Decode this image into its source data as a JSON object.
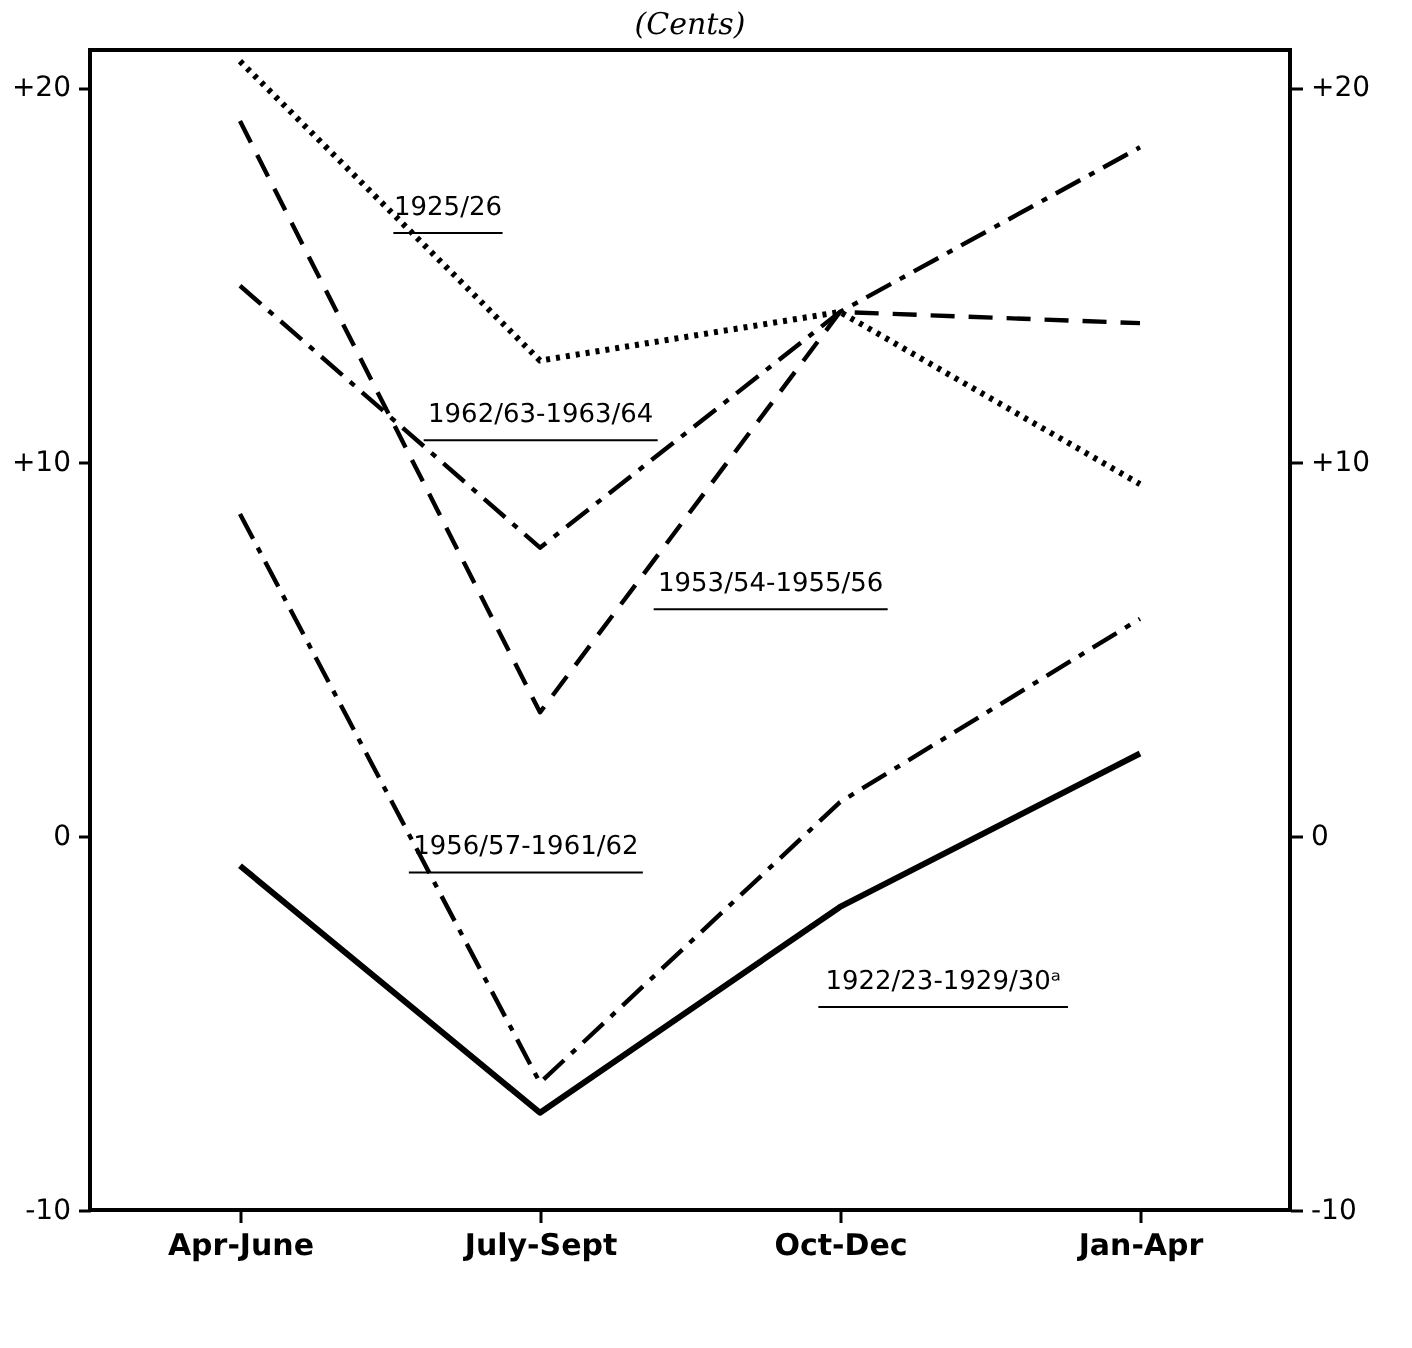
{
  "chart_data": {
    "type": "line",
    "title": "(Cents)",
    "categories": [
      "Apr-June",
      "July-Sept",
      "Oct-Dec",
      "Jan-Apr"
    ],
    "series": [
      {
        "name": "1925/26",
        "color": "#000000",
        "line_style": "dotted",
        "values": [
          20.7,
          12.7,
          14.0,
          9.4
        ]
      },
      {
        "name": "1953/54-1955/56",
        "color": "#000000",
        "line_style": "dashed",
        "values": [
          19.1,
          3.3,
          14.0,
          13.7
        ]
      },
      {
        "name": "1962/63-1963/64",
        "color": "#000000",
        "line_style": "dashdot",
        "values": [
          14.7,
          7.7,
          14.0,
          18.4
        ]
      },
      {
        "name": "1956/57-1961/62",
        "color": "#000000",
        "line_style": "dashdot",
        "values": [
          8.6,
          -6.6,
          0.9,
          5.8
        ]
      },
      {
        "name": "1922/23-1929/30ᵃ",
        "color": "#000000",
        "line_style": "solid",
        "values": [
          -0.8,
          -7.4,
          -1.9,
          2.2
        ]
      }
    ],
    "ylim": [
      -10,
      21
    ],
    "yticks": [
      {
        "value": -10,
        "label": "-10"
      },
      {
        "value": 0,
        "label": "0"
      },
      {
        "value": 10,
        "label": "+10"
      },
      {
        "value": 20,
        "label": "+20"
      }
    ],
    "y2lim": [
      -10,
      21
    ],
    "y2ticks": [
      {
        "value": -10,
        "label": "-10"
      },
      {
        "value": 0,
        "label": "0"
      },
      {
        "value": 10,
        "label": "+10"
      },
      {
        "value": 20,
        "label": "+20"
      }
    ],
    "grid": false,
    "legend": false,
    "marker": "none"
  }
}
